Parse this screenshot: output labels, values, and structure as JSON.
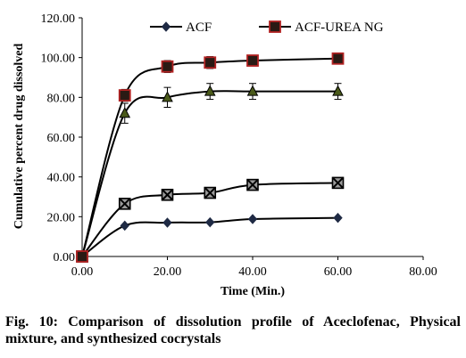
{
  "caption": "Fig. 10: Comparison of dissolution profile of Aceclofenac, Physical mixture, and synthesized cocrystals",
  "chart_data": {
    "type": "line",
    "x": [
      0,
      10,
      20,
      30,
      40,
      60
    ],
    "xlabel": "Time (Min.)",
    "ylabel": "Cumulative percent drug dissolved",
    "xlim": [
      0,
      80
    ],
    "ylim": [
      0,
      120
    ],
    "x_ticks": [
      "0.00",
      "20.00",
      "40.00",
      "60.00",
      "80.00"
    ],
    "y_ticks": [
      "0.00",
      "20.00",
      "40.00",
      "60.00",
      "80.00",
      "100.00",
      "120.00"
    ],
    "grid": false,
    "legend_position": "top",
    "series": [
      {
        "name": "ACF",
        "marker": "diamond",
        "color": "#1f2a44",
        "values": [
          0,
          15.5,
          17,
          17.2,
          18.8,
          19.4
        ],
        "errors": [
          0,
          0,
          0,
          0,
          0,
          0
        ]
      },
      {
        "name": "",
        "marker": "x-square",
        "color": "#000000",
        "values": [
          0,
          26.5,
          31,
          32,
          36,
          37
        ],
        "errors": [
          0,
          0,
          2.5,
          0,
          0,
          0
        ]
      },
      {
        "name": "",
        "marker": "triangle",
        "color": "#000000",
        "fill": "#4a5a1a",
        "values": [
          0,
          72,
          80,
          83,
          83,
          83
        ],
        "errors": [
          0,
          5,
          5,
          4,
          4,
          4
        ]
      },
      {
        "name": "ACF-UREA NG",
        "marker": "square",
        "color": "#b22222",
        "fill": "#2a1a14",
        "values": [
          0,
          81,
          95.5,
          97.5,
          98.5,
          99.5
        ],
        "errors": [
          0,
          3,
          3,
          3,
          0,
          0
        ]
      }
    ]
  }
}
